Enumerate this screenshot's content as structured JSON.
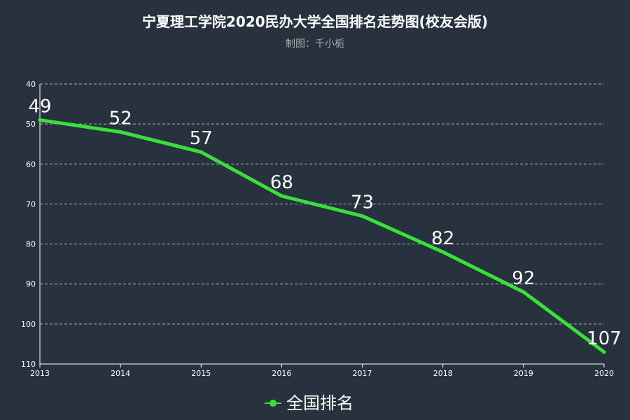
{
  "chart_data": {
    "type": "line",
    "title": "宁夏理工学院2020民办大学全国排名走势图(校友会版)",
    "subtitle": "制图：千小栀",
    "categories": [
      "2013",
      "2014",
      "2015",
      "2016",
      "2017",
      "2018",
      "2019",
      "2020"
    ],
    "series": [
      {
        "name": "全国排名",
        "values": [
          49,
          52,
          57,
          68,
          73,
          82,
          92,
          107
        ]
      }
    ],
    "y_ticks": [
      "40",
      "50",
      "60",
      "70",
      "80",
      "90",
      "100",
      "110"
    ],
    "ylim": [
      40,
      110
    ],
    "y_inverted": true,
    "grid": true,
    "legend_position": "bottom-center",
    "line_color": "#3adf3a"
  }
}
